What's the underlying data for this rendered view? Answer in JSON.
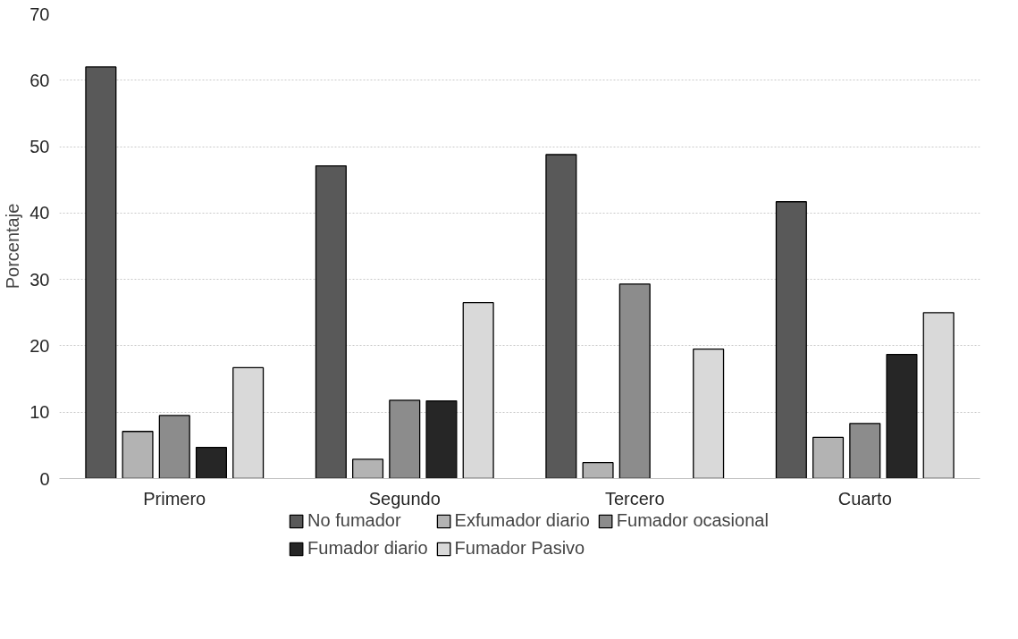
{
  "chart_data": {
    "type": "bar",
    "ylabel": "Porcentaje",
    "categories": [
      "Primero",
      "Segundo",
      "Tercero",
      "Cuarto"
    ],
    "series": [
      {
        "name": "No fumador",
        "color": "#595959",
        "values": [
          62,
          47.1,
          48.8,
          41.7
        ]
      },
      {
        "name": "Exfumador diario",
        "color": "#b3b3b3",
        "values": [
          7.1,
          2.9,
          2.4,
          6.2
        ]
      },
      {
        "name": "Fumador ocasional",
        "color": "#8c8c8c",
        "values": [
          9.5,
          11.8,
          29.3,
          8.3
        ]
      },
      {
        "name": "Fumador diario",
        "color": "#262626",
        "values": [
          4.7,
          11.7,
          null,
          18.7
        ]
      },
      {
        "name": "Fumador Pasivo",
        "color": "#d9d9d9",
        "values": [
          16.7,
          26.5,
          19.5,
          25.0
        ]
      }
    ],
    "ylim": [
      0,
      70
    ],
    "yticks": [
      0,
      10,
      20,
      30,
      40,
      50,
      60,
      70
    ],
    "grid": "y",
    "legend": "bottom"
  }
}
